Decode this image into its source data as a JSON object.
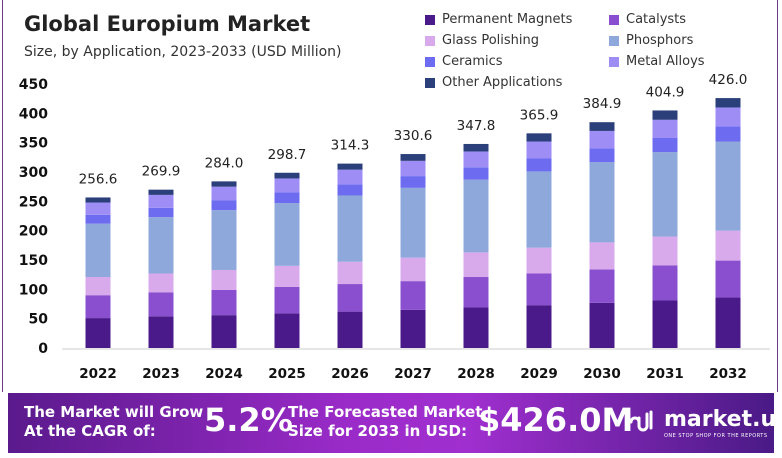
{
  "chart_data": {
    "type": "bar",
    "stacked": true,
    "title": "Global Europium Market",
    "subtitle": "Size, by Application, 2023-2033 (USD Million)",
    "categories": [
      "2022",
      "2023",
      "2024",
      "2025",
      "2026",
      "2027",
      "2028",
      "2029",
      "2030",
      "2031",
      "2032"
    ],
    "totals": [
      "256.6",
      "269.9",
      "284.0",
      "298.7",
      "314.3",
      "330.6",
      "347.8",
      "365.9",
      "384.9",
      "404.9",
      "426.0"
    ],
    "ylim": [
      0,
      450
    ],
    "yticks": [
      0,
      50,
      100,
      150,
      200,
      250,
      300,
      350,
      400,
      450
    ],
    "grid": false,
    "legend_placement": "top-right",
    "series": [
      {
        "name": "Permanent Magnets",
        "color": "#4b1a8a",
        "values": [
          51,
          54,
          56,
          59,
          62,
          65,
          69,
          73,
          77,
          81,
          86
        ]
      },
      {
        "name": "Catalysts",
        "color": "#8a4fcf",
        "values": [
          39,
          41,
          43,
          45,
          47,
          49,
          52,
          54,
          57,
          60,
          63
        ]
      },
      {
        "name": "Glass Polishing",
        "color": "#d8aaec",
        "values": [
          31,
          32,
          34,
          36,
          38,
          40,
          42,
          44,
          46,
          49,
          51
        ]
      },
      {
        "name": "Phosphors",
        "color": "#8fa8dc",
        "values": [
          91,
          96,
          102,
          107,
          113,
          119,
          124,
          130,
          137,
          144,
          152
        ]
      },
      {
        "name": "Ceramics",
        "color": "#6d6cf0",
        "values": [
          15,
          16,
          17,
          18,
          19,
          20,
          21,
          22,
          23,
          24,
          26
        ]
      },
      {
        "name": "Metal Alloys",
        "color": "#9d8df5",
        "values": [
          21,
          22,
          23,
          24,
          25,
          26,
          27,
          29,
          30,
          31,
          32
        ]
      },
      {
        "name": "Other Applications",
        "color": "#2b3f7a",
        "values": [
          8.6,
          8.9,
          9,
          9.7,
          10.3,
          11.6,
          12.8,
          13.9,
          14.9,
          15.9,
          16
        ]
      }
    ]
  },
  "footer": {
    "cagr_label": [
      "The Market will Grow",
      "At the CAGR of:"
    ],
    "cagr_value": "5.2%",
    "forecast_label": [
      "The Forecasted Market",
      "Size for 2033 in USD:"
    ],
    "forecast_value": "$426.0M",
    "brand": "market.us",
    "brand_tagline": "ONE STOP SHOP FOR THE REPORTS"
  }
}
